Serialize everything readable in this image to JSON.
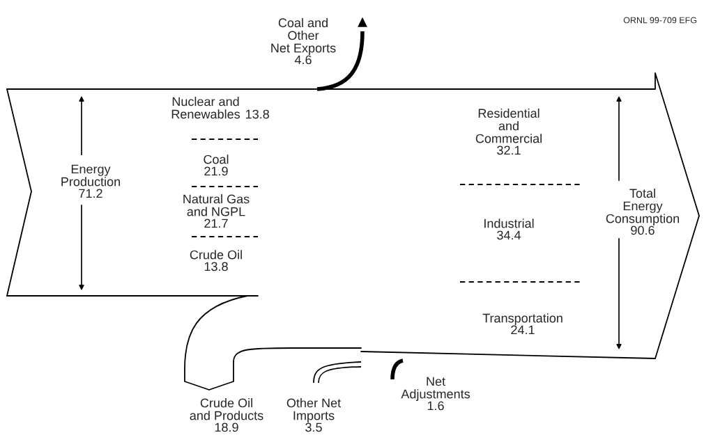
{
  "chart_data": {
    "type": "other",
    "categories": [
      "Coal and\nOther\nNet Exports",
      "Nuclear and\nRenewables",
      "Coal",
      "Natural Gas\nand NGPL",
      "Crude Oil",
      "Energy\nProduction",
      "Residential\nand\nCommercial",
      "Industrial",
      "Transportation",
      "Total\nEnergy\nConsumption",
      "Crude Oil\nand Products",
      "Other Net\nImports",
      "Net\nAdjustments"
    ],
    "values": [
      4.6,
      13.8,
      21.9,
      21.7,
      13.8,
      71.2,
      32.1,
      34.4,
      24.1,
      90.6,
      18.9,
      3.5,
      1.6
    ],
    "data_labels": true,
    "annotations": [
      "ORNL 99-709 EFG"
    ]
  }
}
